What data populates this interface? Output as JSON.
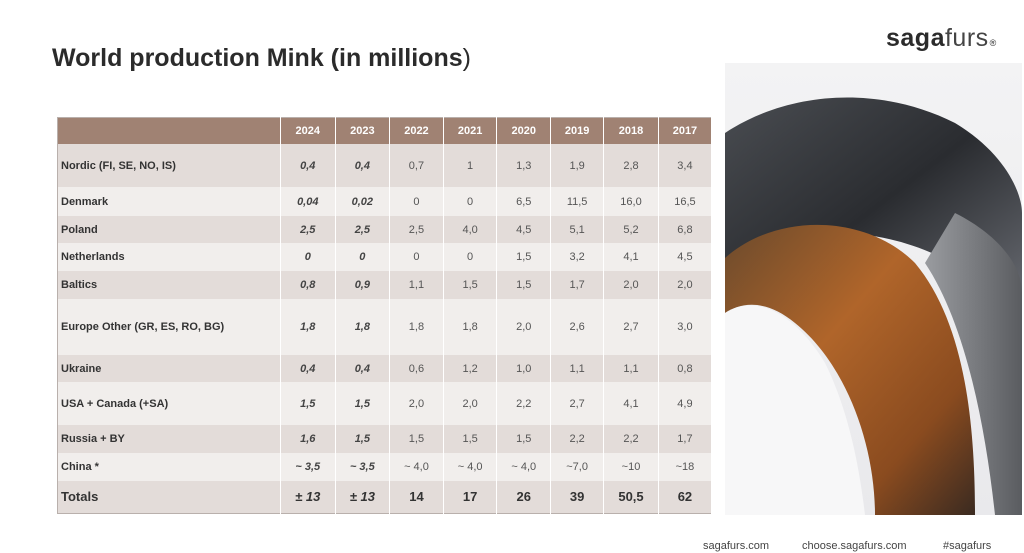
{
  "title": {
    "main": "World production Mink (in millions",
    "paren": ")"
  },
  "logo": {
    "part1": "saga",
    "part2": "furs",
    "mark": "®"
  },
  "table": {
    "headers": [
      "",
      "2024",
      "2023",
      "2022",
      "2021",
      "2020",
      "2019",
      "2018",
      "2017"
    ],
    "rows": [
      {
        "label": "Nordic (FI, SE, NO, IS)",
        "values": [
          "0,4",
          "0,4",
          "0,7",
          "1",
          "1,3",
          "1,9",
          "2,8",
          "3,4"
        ]
      },
      {
        "label": "Denmark",
        "values": [
          "0,04",
          "0,02",
          "0",
          "0",
          "6,5",
          "11,5",
          "16,0",
          "16,5"
        ]
      },
      {
        "label": "Poland",
        "values": [
          "2,5",
          "2,5",
          "2,5",
          "4,0",
          "4,5",
          "5,1",
          "5,2",
          "6,8"
        ]
      },
      {
        "label": "Netherlands",
        "values": [
          "0",
          "0",
          "0",
          "0",
          "1,5",
          "3,2",
          "4,1",
          "4,5"
        ]
      },
      {
        "label": "Baltics",
        "values": [
          "0,8",
          "0,9",
          "1,1",
          "1,5",
          "1,5",
          "1,7",
          "2,0",
          "2,0"
        ]
      },
      {
        "label": "Europe Other (GR, ES, RO, BG)",
        "values": [
          "1,8",
          "1,8",
          "1,8",
          "1,8",
          "2,0",
          "2,6",
          "2,7",
          "3,0"
        ]
      },
      {
        "label": "Ukraine",
        "values": [
          "0,4",
          "0,4",
          "0,6",
          "1,2",
          "1,0",
          "1,1",
          "1,1",
          "0,8"
        ]
      },
      {
        "label": "USA + Canada (+SA)",
        "values": [
          "1,5",
          "1,5",
          "2,0",
          "2,0",
          "2,2",
          "2,7",
          "4,1",
          "4,9"
        ]
      },
      {
        "label": "Russia + BY",
        "values": [
          "1,6",
          "1,5",
          "1,5",
          "1,5",
          "1,5",
          "2,2",
          "2,2",
          "1,7"
        ]
      },
      {
        "label": "China *",
        "values": [
          "~ 3,5",
          "~ 3,5",
          "~ 4,0",
          "~ 4,0",
          "~ 4,0",
          "~7,0",
          "~10",
          "~18"
        ]
      },
      {
        "label": "Totals",
        "values": [
          "± 13",
          "± 13",
          "14",
          "17",
          "26",
          "39",
          "50,5",
          "62"
        ]
      }
    ]
  },
  "footer": {
    "links": [
      "sagafurs.com",
      "choose.sagafurs.com",
      "#sagafurs"
    ]
  },
  "colors": {
    "header": "#a08273",
    "row_dark": "#e3dcd9",
    "row_light": "#f1eeec"
  }
}
